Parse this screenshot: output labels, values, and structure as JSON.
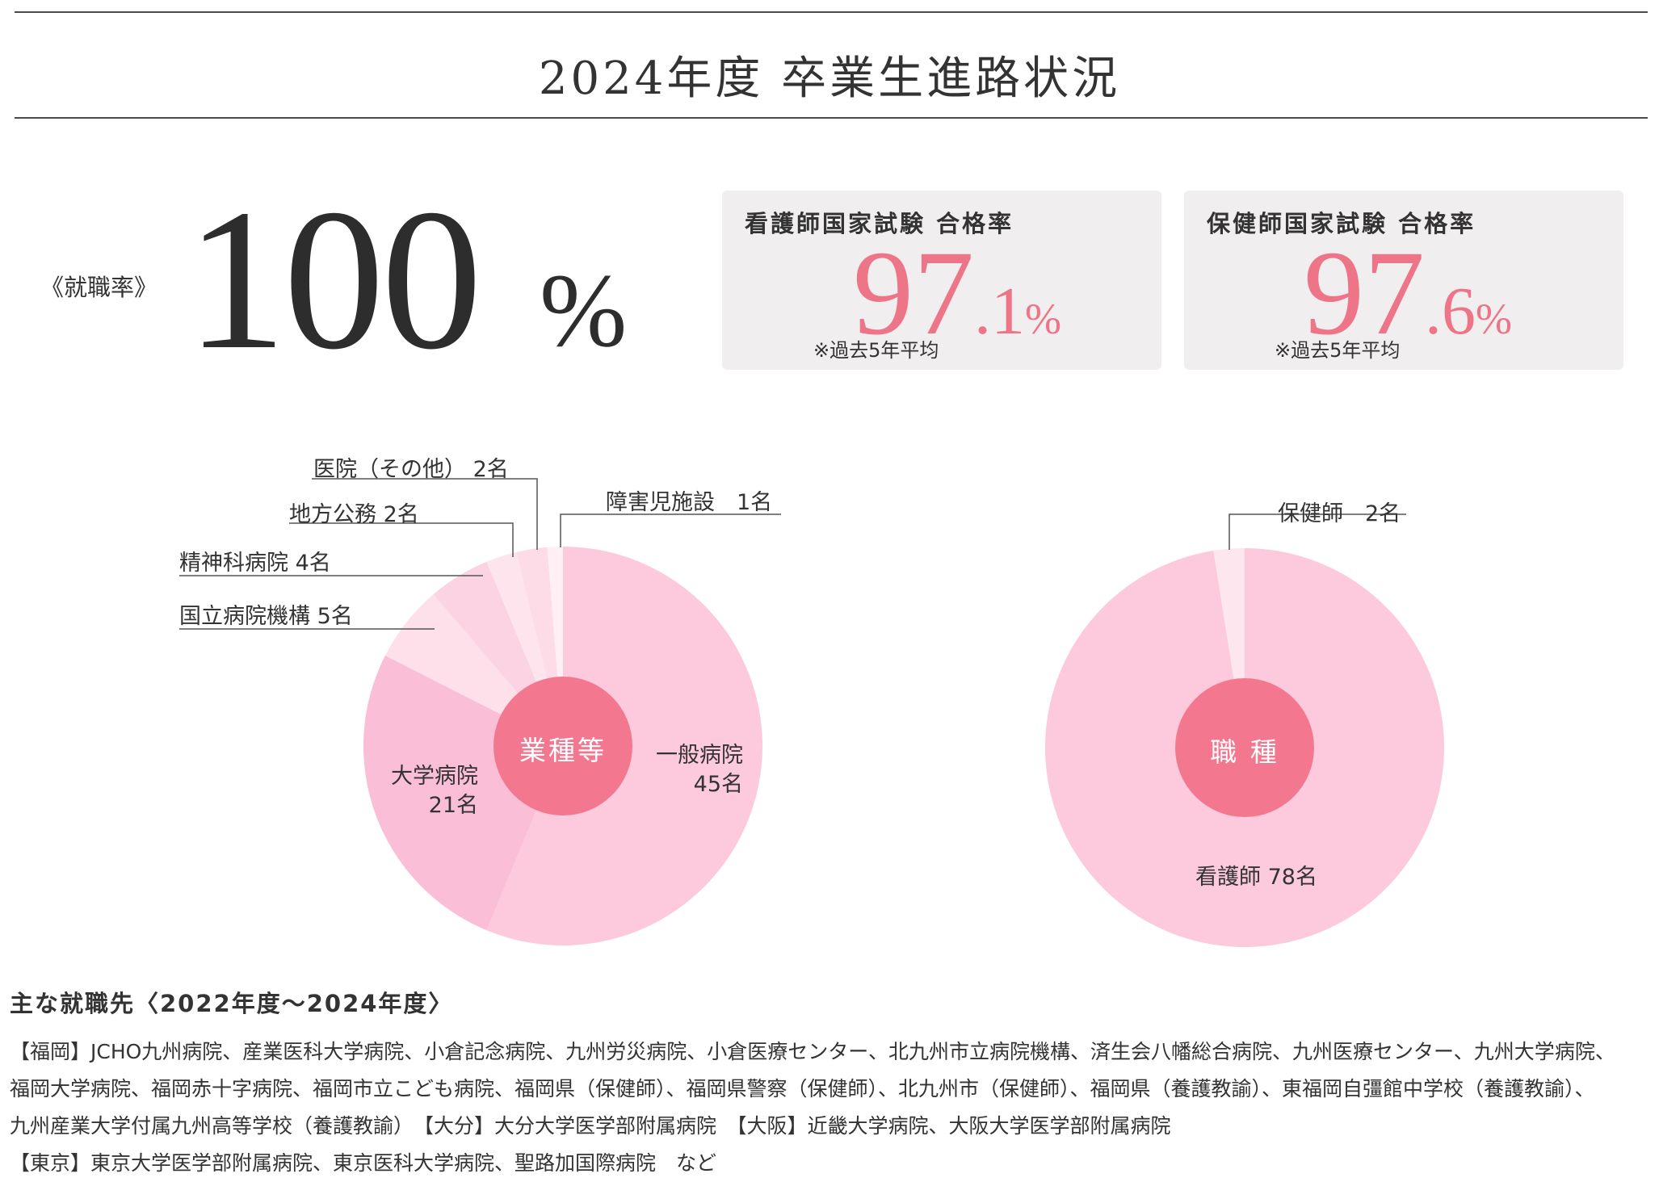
{
  "title": "2024年度 卒業生進路状況",
  "employment": {
    "label": "《就職率》",
    "value": "100",
    "unit": "%"
  },
  "exam_boxes": [
    {
      "title": "看護師国家試験 合格率",
      "value_int": "97",
      "value_dec": ".1",
      "unit": "%",
      "note": "※過去5年平均"
    },
    {
      "title": "保健師国家試験 合格率",
      "value_int": "97",
      "value_dec": ".6",
      "unit": "%",
      "note": "※過去5年平均"
    }
  ],
  "chart_data": [
    {
      "type": "pie",
      "title": "業種等",
      "categories": [
        "一般病院",
        "大学病院",
        "国立病院機構",
        "精神科病院",
        "地方公務",
        "医院（その他）",
        "障害児施設"
      ],
      "values": [
        45,
        21,
        5,
        4,
        2,
        2,
        1
      ],
      "unit": "名",
      "colors": [
        "#fccadc",
        "#fabed6",
        "#fde0ea",
        "#fcd3e2",
        "#fde4ed",
        "#fddbe7",
        "#fff0f5"
      ],
      "labels": {
        "general": {
          "name": "一般病院",
          "value": "45名"
        },
        "univ": {
          "name": "大学病院",
          "value": "21名"
        },
        "national": "国立病院機構 5名",
        "psych": "精神科病院 4名",
        "local": "地方公務 2名",
        "clinic": "医院（その他） 2名",
        "disabled": "障害児施設　1名"
      }
    },
    {
      "type": "pie",
      "title": "職 種",
      "categories": [
        "看護師",
        "保健師"
      ],
      "values": [
        78,
        2
      ],
      "unit": "名",
      "colors": [
        "#fccadc",
        "#fde6ee"
      ],
      "labels": {
        "nurse": "看護師 78名",
        "phn": "保健師　2名"
      }
    }
  ],
  "center_color": "#f47790",
  "employers": {
    "title": "主な就職先〈2022年度〜2024年度〉",
    "lines": [
      "【福岡】JCHO九州病院、産業医科大学病院、小倉記念病院、九州労災病院、小倉医療センター、北九州市立病院機構、済生会八幡総合病院、九州医療センター、九州大学病院、",
      "福岡大学病院、福岡赤十字病院、福岡市立こども病院、福岡県（保健師）、福岡県警察（保健師）、北九州市（保健師）、福岡県（養護教諭）、東福岡自彊館中学校（養護教諭）、",
      "九州産業大学付属九州高等学校（養護教諭）　【大分】大分大学医学部附属病院　【大阪】近畿大学病院、大阪大学医学部附属病院",
      "【東京】東京大学医学部附属病院、東京医科大学病院、聖路加国際病院　など"
    ]
  }
}
